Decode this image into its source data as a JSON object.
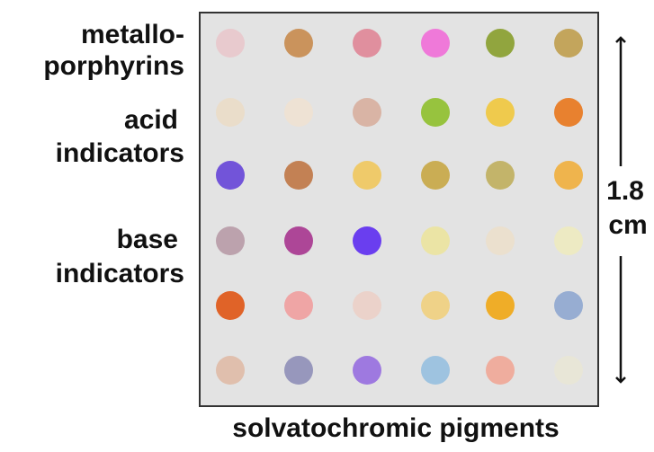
{
  "row_labels": [
    [
      "metallo-",
      "porphyrins"
    ],
    [
      "acid",
      "indicators"
    ],
    [
      "base",
      "indicators"
    ]
  ],
  "scale_label": [
    "1.8",
    "cm"
  ],
  "caption": "solvatochromic pigments"
}
